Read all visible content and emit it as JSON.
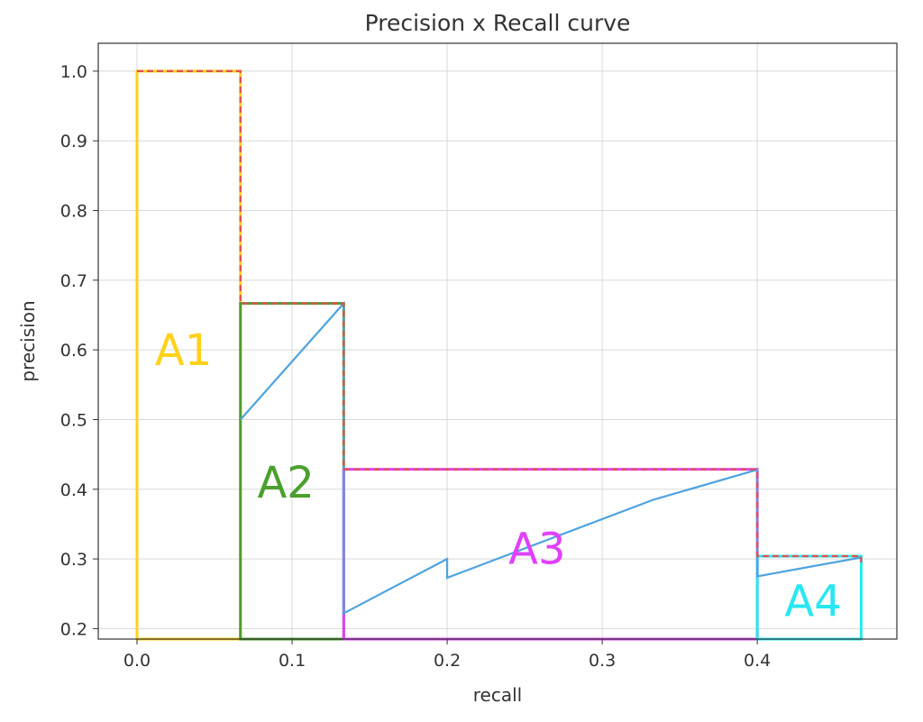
{
  "chart_data": {
    "type": "line",
    "title": "Precision x Recall curve",
    "xlabel": "recall",
    "ylabel": "precision",
    "xlim": [
      -0.025,
      0.49
    ],
    "ylim": [
      0.185,
      1.04
    ],
    "xticks": [
      0.0,
      0.1,
      0.2,
      0.3,
      0.4
    ],
    "yticks": [
      0.2,
      0.3,
      0.4,
      0.5,
      0.6,
      0.7,
      0.8,
      0.9,
      1.0
    ],
    "xtick_labels": [
      "0.0",
      "0.1",
      "0.2",
      "0.3",
      "0.4"
    ],
    "ytick_labels": [
      "0.2",
      "0.3",
      "0.4",
      "0.5",
      "0.6",
      "0.7",
      "0.8",
      "0.9",
      "1.0"
    ],
    "grid": true,
    "legend": "none",
    "series": [
      {
        "style": "solid",
        "color": "#4da3e0",
        "points": [
          [
            0.0667,
            0.5
          ],
          [
            0.1333,
            0.6667
          ],
          [
            0.1333,
            0.222
          ],
          [
            0.2,
            0.3
          ],
          [
            0.2,
            0.273
          ],
          [
            0.333,
            0.385
          ],
          [
            0.4,
            0.428
          ],
          [
            0.4,
            0.275
          ],
          [
            0.467,
            0.302
          ]
        ]
      },
      {
        "style": "dashed",
        "color": "#e05050",
        "points": [
          [
            0.0,
            1.0
          ],
          [
            0.0667,
            1.0
          ],
          [
            0.0667,
            0.6667
          ],
          [
            0.1333,
            0.6667
          ],
          [
            0.1333,
            0.4286
          ],
          [
            0.4,
            0.4286
          ],
          [
            0.4,
            0.304
          ],
          [
            0.467,
            0.304
          ],
          [
            0.467,
            0.295
          ]
        ]
      }
    ],
    "areas": [
      {
        "label": "A1",
        "color": "#ffd11a",
        "x0": 0.0,
        "x1": 0.0667,
        "y0": 0.185,
        "y1": 1.0,
        "label_x": 0.03,
        "label_y": 0.6
      },
      {
        "label": "A2",
        "color": "#4aa02c",
        "x0": 0.0667,
        "x1": 0.1333,
        "y0": 0.185,
        "y1": 0.6667,
        "label_x": 0.096,
        "label_y": 0.41
      },
      {
        "label": "A3",
        "color": "#e040fb",
        "x0": 0.1333,
        "x1": 0.4,
        "y0": 0.185,
        "y1": 0.4286,
        "label_x": 0.258,
        "label_y": 0.315
      },
      {
        "label": "A4",
        "color": "#26e8f0",
        "x0": 0.4,
        "x1": 0.467,
        "y0": 0.185,
        "y1": 0.304,
        "label_x": 0.436,
        "label_y": 0.24
      }
    ]
  }
}
